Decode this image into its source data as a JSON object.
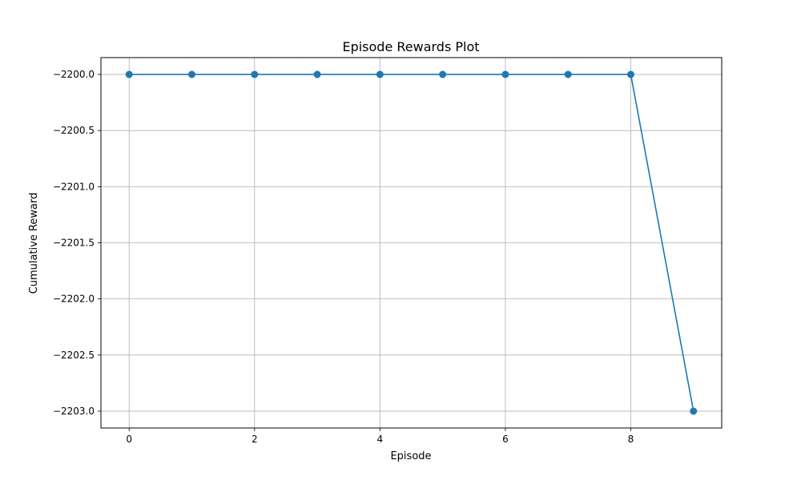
{
  "chart_data": {
    "type": "line",
    "title": "Episode Rewards Plot",
    "xlabel": "Episode",
    "ylabel": "Cumulative Reward",
    "xlim": [
      -0.45,
      9.45
    ],
    "ylim": [
      -2203.15,
      -2199.85
    ],
    "xticks": [
      0,
      2,
      4,
      6,
      8
    ],
    "xtick_labels": [
      "0",
      "2",
      "4",
      "6",
      "8"
    ],
    "yticks": [
      -2200.0,
      -2200.5,
      -2201.0,
      -2201.5,
      -2202.0,
      -2202.5,
      -2203.0
    ],
    "ytick_labels": [
      "−2200.0",
      "−2200.5",
      "−2201.0",
      "−2201.5",
      "−2202.0",
      "−2202.5",
      "−2203.0"
    ],
    "grid": true,
    "legend": "none",
    "series": [
      {
        "color": "#1f77b4",
        "marker": "circle",
        "x": [
          0,
          1,
          2,
          3,
          4,
          5,
          6,
          7,
          8,
          9
        ],
        "y": [
          -2200,
          -2200,
          -2200,
          -2200,
          -2200,
          -2200,
          -2200,
          -2200,
          -2200,
          -2203
        ]
      }
    ]
  }
}
